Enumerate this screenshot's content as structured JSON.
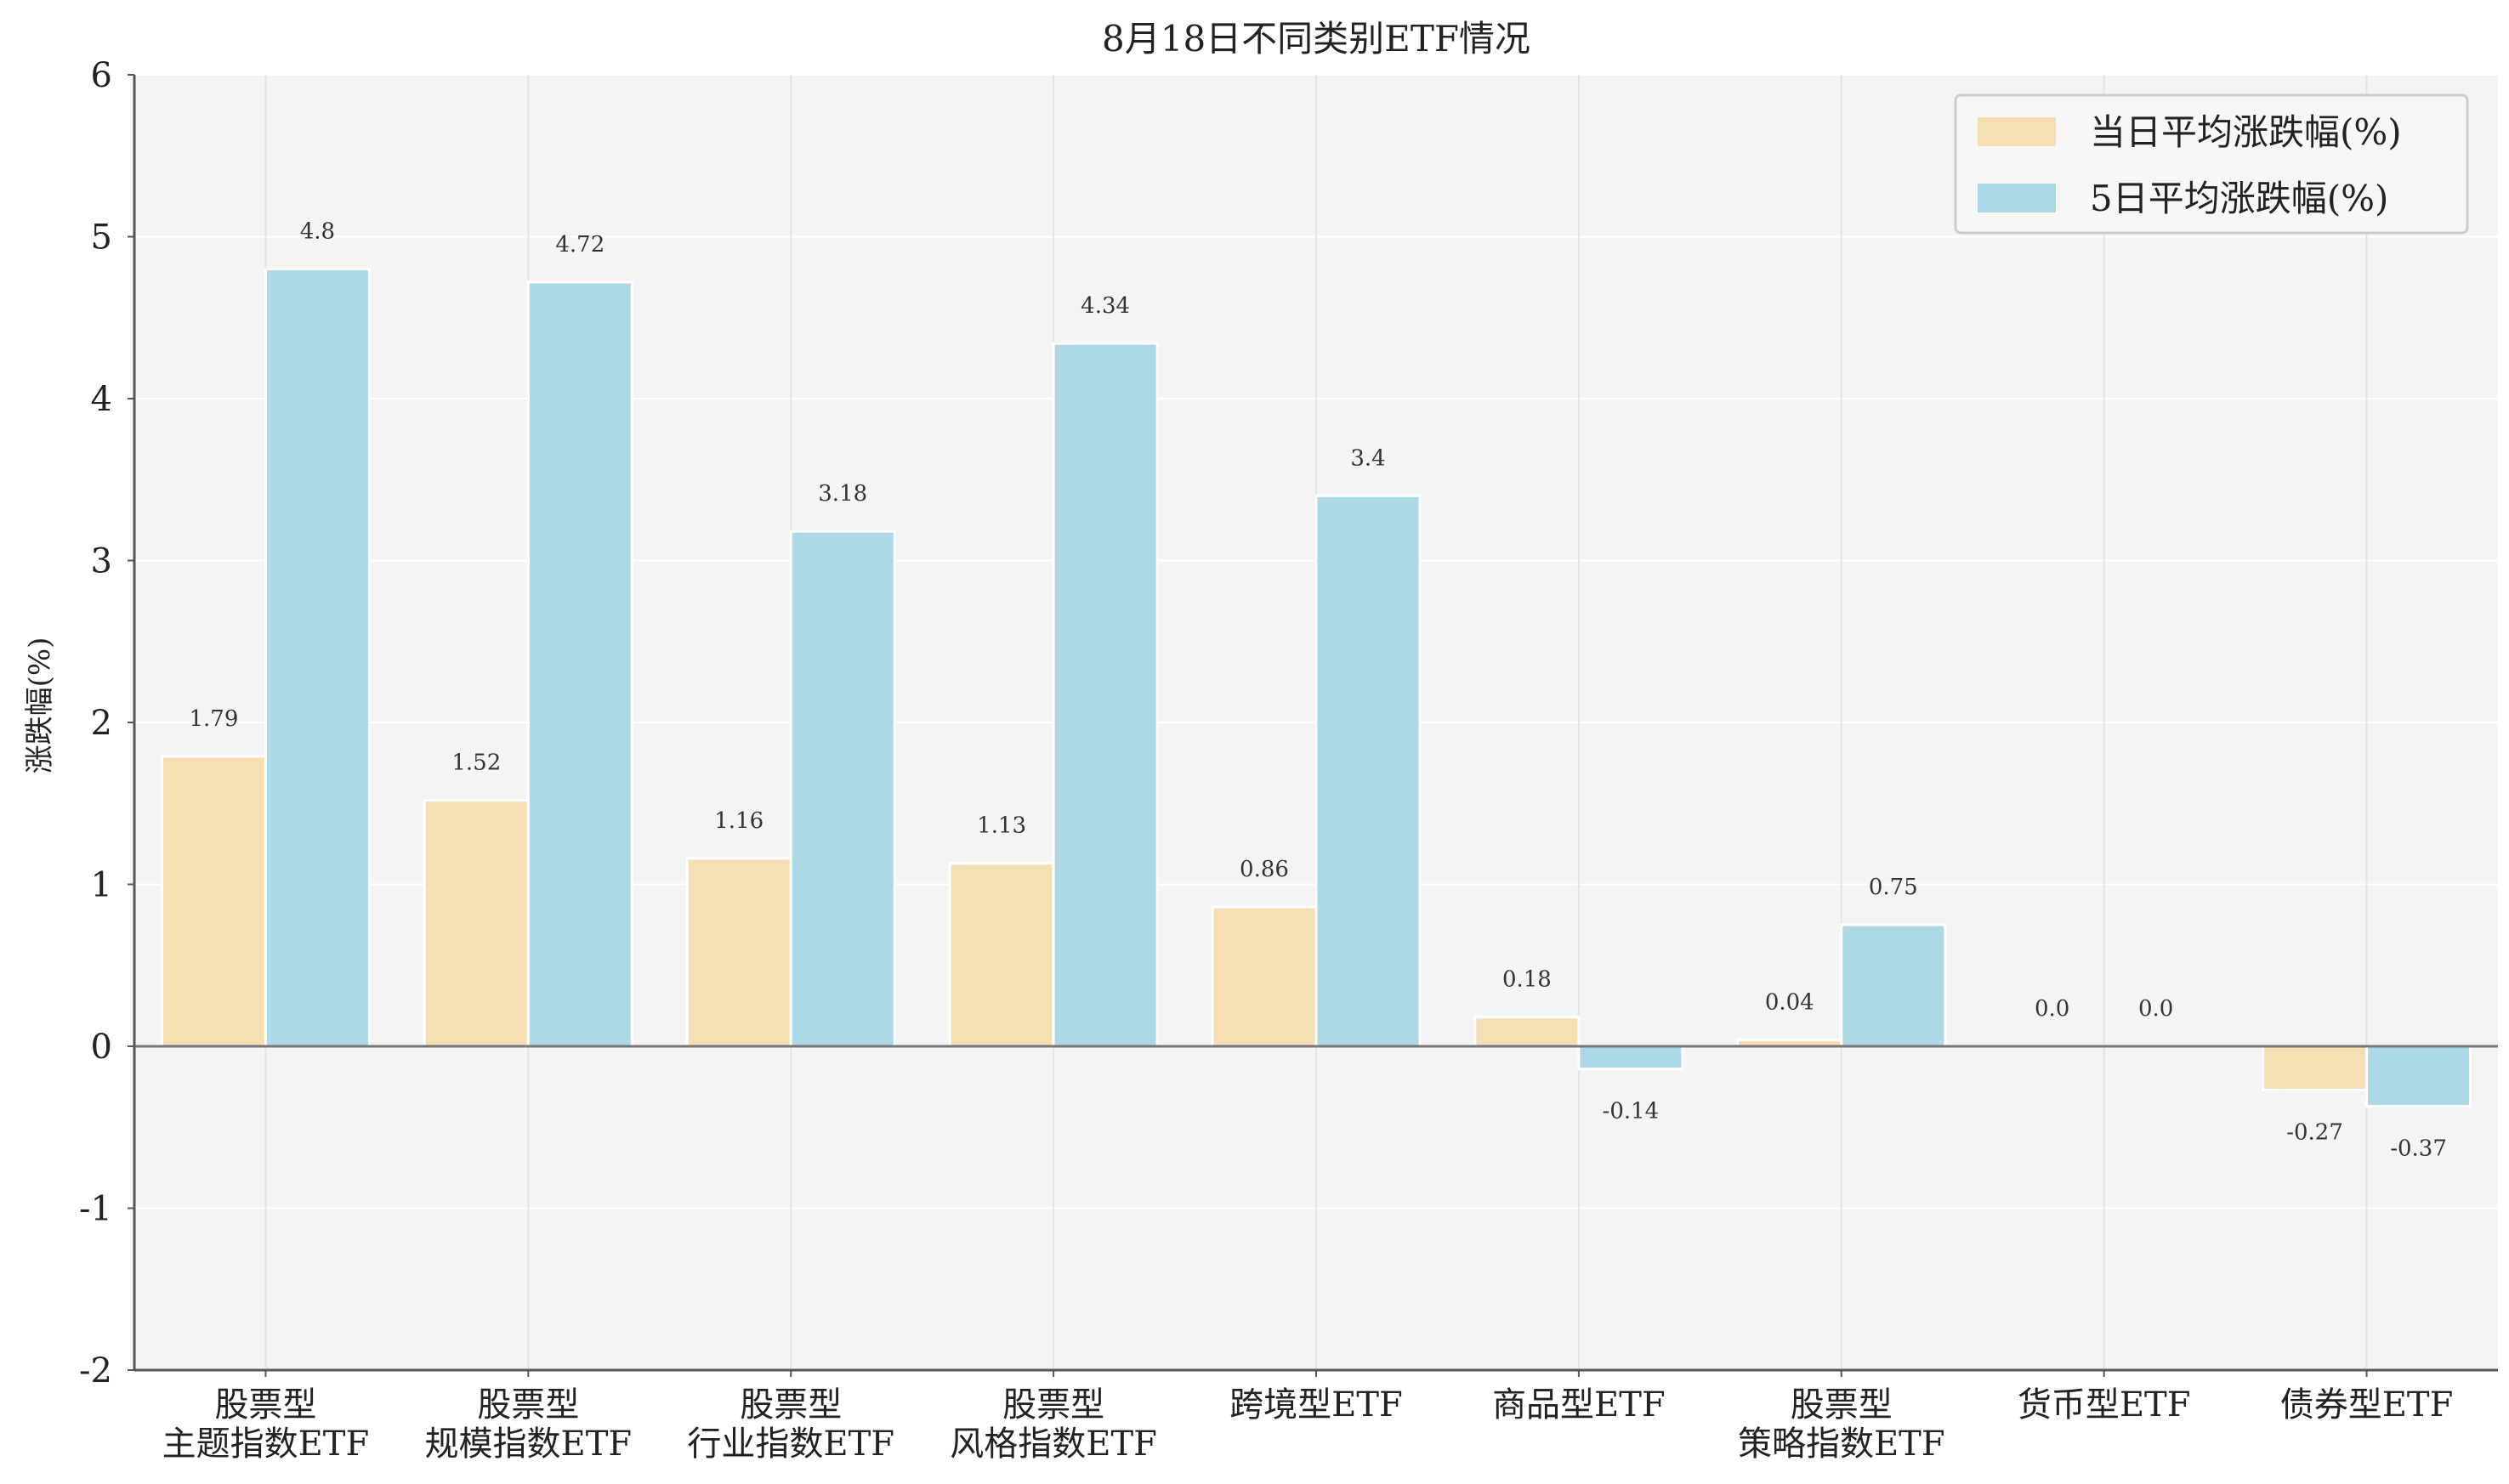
{
  "chart_data": {
    "type": "bar",
    "title": "8月18日不同类别ETF情况",
    "xlabel": "",
    "ylabel": "涨跌幅(%)",
    "ylim": [
      -2,
      6
    ],
    "yticks": [
      -2,
      -1,
      0,
      1,
      2,
      3,
      4,
      5,
      6
    ],
    "grid": true,
    "legend_position": "top-right",
    "categories": [
      [
        "股票型",
        "主题指数ETF"
      ],
      [
        "股票型",
        "规模指数ETF"
      ],
      [
        "股票型",
        "行业指数ETF"
      ],
      [
        "股票型",
        "风格指数ETF"
      ],
      [
        "跨境型ETF"
      ],
      [
        "商品型ETF"
      ],
      [
        "股票型",
        "策略指数ETF"
      ],
      [
        "货币型ETF"
      ],
      [
        "债券型ETF"
      ]
    ],
    "series": [
      {
        "name": "当日平均涨跌幅(%)",
        "color": "#f5deb3",
        "values": [
          1.79,
          1.52,
          1.16,
          1.13,
          0.86,
          0.18,
          0.04,
          0.0,
          -0.27
        ],
        "labels": [
          "1.79",
          "1.52",
          "1.16",
          "1.13",
          "0.86",
          "0.18",
          "0.04",
          "0.0",
          "-0.27"
        ]
      },
      {
        "name": "5日平均涨跌幅(%)",
        "color": "#add8e6",
        "values": [
          4.8,
          4.72,
          3.18,
          4.34,
          3.4,
          -0.14,
          0.75,
          0.0,
          -0.37
        ],
        "labels": [
          "4.8",
          "4.72",
          "3.18",
          "4.34",
          "3.4",
          "-0.14",
          "0.75",
          "0.0",
          "-0.37"
        ]
      }
    ],
    "colors": {
      "plot_background": "#f4f4f4",
      "grid": "#e4e4e4",
      "axis": "#555555",
      "zero_line": "#777777"
    }
  }
}
